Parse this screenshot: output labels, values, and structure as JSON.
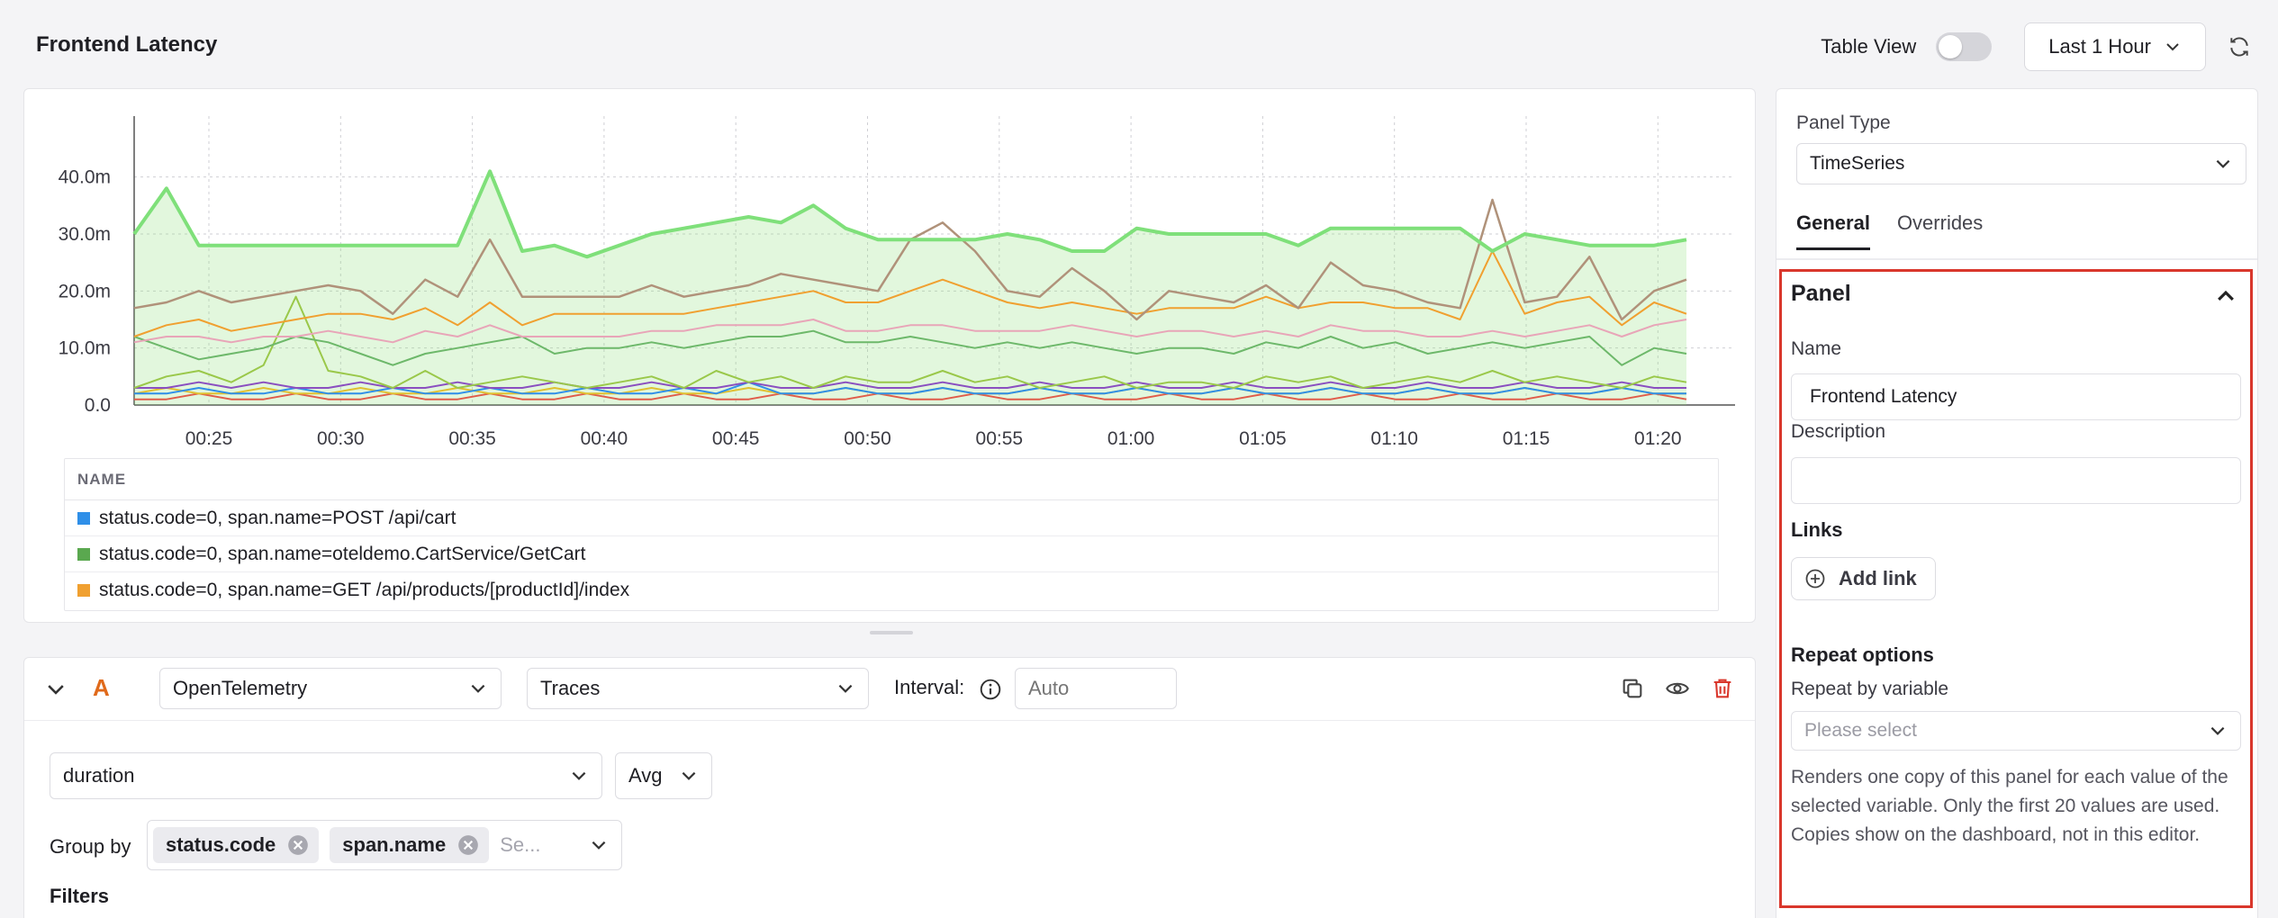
{
  "header": {
    "title": "Frontend Latency",
    "table_view_label": "Table View",
    "table_view_on": false,
    "time_range": "Last 1 Hour",
    "icons": {
      "time_range": "chevron-down-icon",
      "refresh": "refresh-icon"
    }
  },
  "chart_data": {
    "type": "area",
    "title": "",
    "xlabel": "",
    "ylabel": "",
    "x_ticks": [
      "00:25",
      "00:30",
      "00:35",
      "00:40",
      "00:45",
      "00:50",
      "00:55",
      "01:00",
      "01:05",
      "01:10",
      "01:15",
      "01:20"
    ],
    "y_ticks": [
      "0.0",
      "10.0m",
      "20.0m",
      "30.0m",
      "40.0m"
    ],
    "ylim": [
      0,
      0.045
    ],
    "grid": true,
    "series": [
      {
        "color": "#7fe07a",
        "fill": true,
        "width": 4,
        "values": [
          0.03,
          0.038,
          0.028,
          0.028,
          0.028,
          0.028,
          0.028,
          0.028,
          0.028,
          0.028,
          0.028,
          0.041,
          0.027,
          0.028,
          0.026,
          0.028,
          0.03,
          0.031,
          0.032,
          0.033,
          0.032,
          0.035,
          0.031,
          0.029,
          0.029,
          0.029,
          0.029,
          0.03,
          0.029,
          0.027,
          0.027,
          0.031,
          0.03,
          0.03,
          0.03,
          0.03,
          0.028,
          0.031,
          0.031,
          0.031,
          0.031,
          0.031,
          0.027,
          0.03,
          0.029,
          0.028,
          0.028,
          0.028,
          0.029
        ]
      },
      {
        "color": "#b0927a",
        "fill": false,
        "width": 2.5,
        "values": [
          0.017,
          0.018,
          0.02,
          0.018,
          0.019,
          0.02,
          0.021,
          0.02,
          0.016,
          0.022,
          0.019,
          0.029,
          0.019,
          0.019,
          0.019,
          0.019,
          0.021,
          0.019,
          0.02,
          0.021,
          0.023,
          0.022,
          0.021,
          0.02,
          0.029,
          0.032,
          0.027,
          0.02,
          0.019,
          0.024,
          0.02,
          0.015,
          0.02,
          0.019,
          0.018,
          0.021,
          0.017,
          0.025,
          0.021,
          0.02,
          0.018,
          0.017,
          0.036,
          0.018,
          0.019,
          0.026,
          0.015,
          0.02,
          0.022
        ]
      },
      {
        "color": "#f0a030",
        "fill": false,
        "width": 2,
        "values": [
          0.012,
          0.014,
          0.015,
          0.013,
          0.014,
          0.015,
          0.016,
          0.016,
          0.015,
          0.017,
          0.014,
          0.018,
          0.014,
          0.016,
          0.016,
          0.016,
          0.016,
          0.016,
          0.017,
          0.018,
          0.019,
          0.02,
          0.018,
          0.018,
          0.02,
          0.022,
          0.02,
          0.018,
          0.017,
          0.018,
          0.017,
          0.016,
          0.017,
          0.017,
          0.017,
          0.019,
          0.017,
          0.018,
          0.018,
          0.017,
          0.017,
          0.015,
          0.027,
          0.016,
          0.018,
          0.019,
          0.014,
          0.018,
          0.016
        ]
      },
      {
        "color": "#e8a5b8",
        "fill": false,
        "width": 2,
        "values": [
          0.011,
          0.012,
          0.012,
          0.011,
          0.012,
          0.012,
          0.013,
          0.012,
          0.011,
          0.013,
          0.012,
          0.014,
          0.012,
          0.012,
          0.012,
          0.012,
          0.013,
          0.013,
          0.014,
          0.014,
          0.014,
          0.015,
          0.013,
          0.013,
          0.014,
          0.014,
          0.013,
          0.013,
          0.013,
          0.014,
          0.013,
          0.012,
          0.013,
          0.013,
          0.012,
          0.013,
          0.012,
          0.014,
          0.013,
          0.013,
          0.012,
          0.012,
          0.013,
          0.012,
          0.013,
          0.014,
          0.012,
          0.014,
          0.015
        ]
      },
      {
        "color": "#6db86a",
        "fill": false,
        "width": 2,
        "values": [
          0.012,
          0.01,
          0.008,
          0.009,
          0.01,
          0.012,
          0.011,
          0.009,
          0.007,
          0.009,
          0.01,
          0.011,
          0.012,
          0.009,
          0.01,
          0.01,
          0.011,
          0.01,
          0.011,
          0.012,
          0.012,
          0.013,
          0.011,
          0.011,
          0.012,
          0.011,
          0.01,
          0.011,
          0.01,
          0.011,
          0.01,
          0.009,
          0.01,
          0.01,
          0.009,
          0.011,
          0.01,
          0.012,
          0.01,
          0.011,
          0.009,
          0.01,
          0.011,
          0.01,
          0.011,
          0.012,
          0.007,
          0.01,
          0.009
        ]
      },
      {
        "color": "#9ac84a",
        "fill": false,
        "width": 2,
        "values": [
          0.003,
          0.005,
          0.006,
          0.004,
          0.007,
          0.019,
          0.006,
          0.005,
          0.003,
          0.006,
          0.003,
          0.004,
          0.005,
          0.004,
          0.003,
          0.004,
          0.005,
          0.003,
          0.006,
          0.004,
          0.005,
          0.003,
          0.005,
          0.004,
          0.004,
          0.006,
          0.004,
          0.005,
          0.003,
          0.004,
          0.005,
          0.003,
          0.004,
          0.004,
          0.003,
          0.005,
          0.004,
          0.005,
          0.003,
          0.004,
          0.005,
          0.004,
          0.006,
          0.004,
          0.005,
          0.004,
          0.003,
          0.005,
          0.004
        ]
      },
      {
        "color": "#8a4fc0",
        "fill": false,
        "width": 2,
        "values": [
          0.003,
          0.003,
          0.004,
          0.003,
          0.004,
          0.003,
          0.003,
          0.004,
          0.003,
          0.003,
          0.004,
          0.003,
          0.003,
          0.004,
          0.003,
          0.003,
          0.004,
          0.003,
          0.003,
          0.004,
          0.003,
          0.003,
          0.004,
          0.003,
          0.003,
          0.004,
          0.003,
          0.003,
          0.004,
          0.003,
          0.003,
          0.004,
          0.003,
          0.003,
          0.004,
          0.003,
          0.003,
          0.004,
          0.003,
          0.003,
          0.004,
          0.003,
          0.003,
          0.004,
          0.003,
          0.003,
          0.004,
          0.003,
          0.003
        ]
      },
      {
        "color": "#2f8fe8",
        "fill": false,
        "width": 2,
        "values": [
          0.002,
          0.002,
          0.003,
          0.002,
          0.002,
          0.003,
          0.002,
          0.002,
          0.003,
          0.002,
          0.002,
          0.003,
          0.002,
          0.002,
          0.003,
          0.002,
          0.002,
          0.003,
          0.002,
          0.004,
          0.002,
          0.002,
          0.003,
          0.002,
          0.002,
          0.003,
          0.002,
          0.002,
          0.003,
          0.002,
          0.002,
          0.003,
          0.002,
          0.002,
          0.003,
          0.002,
          0.002,
          0.003,
          0.002,
          0.002,
          0.003,
          0.002,
          0.002,
          0.003,
          0.002,
          0.002,
          0.003,
          0.002,
          0.002
        ]
      },
      {
        "color": "#e0c030",
        "fill": false,
        "width": 2,
        "values": [
          0.002,
          0.003,
          0.002,
          0.002,
          0.003,
          0.002,
          0.002,
          0.003,
          0.002,
          0.002,
          0.003,
          0.002,
          0.002,
          0.003,
          0.002,
          0.002,
          0.003,
          0.002,
          0.002,
          0.003,
          0.002,
          0.002,
          0.003,
          0.002,
          0.002,
          0.003,
          0.002,
          0.002,
          0.003,
          0.002,
          0.002,
          0.003,
          0.002,
          0.002,
          0.003,
          0.002,
          0.002,
          0.003,
          0.002,
          0.002,
          0.003,
          0.002,
          0.002,
          0.003,
          0.002,
          0.002,
          0.003,
          0.002,
          0.002
        ]
      },
      {
        "color": "#e05c4a",
        "fill": false,
        "width": 2,
        "values": [
          0.001,
          0.001,
          0.002,
          0.001,
          0.001,
          0.002,
          0.001,
          0.001,
          0.002,
          0.001,
          0.001,
          0.002,
          0.001,
          0.001,
          0.002,
          0.001,
          0.001,
          0.002,
          0.001,
          0.001,
          0.002,
          0.001,
          0.001,
          0.002,
          0.001,
          0.001,
          0.002,
          0.001,
          0.001,
          0.002,
          0.001,
          0.001,
          0.002,
          0.001,
          0.001,
          0.002,
          0.001,
          0.001,
          0.002,
          0.001,
          0.001,
          0.002,
          0.001,
          0.001,
          0.002,
          0.001,
          0.001,
          0.002,
          0.001
        ]
      }
    ]
  },
  "legend": {
    "header": "NAME",
    "items": [
      {
        "label": "status.code=0, span.name=POST /api/cart",
        "color": "#2f8fe8"
      },
      {
        "label": "status.code=0, span.name=oteldemo.CartService/GetCart",
        "color": "#5aa84f"
      },
      {
        "label": "status.code=0, span.name=GET /api/products/[productId]/index",
        "color": "#f0a030"
      }
    ]
  },
  "query": {
    "letter": "A",
    "datasource": "OpenTelemetry",
    "signal": "Traces",
    "interval_label": "Interval:",
    "interval_placeholder": "Auto",
    "field": "duration",
    "aggregation": "Avg",
    "group_by_label": "Group by",
    "group_by_tags": [
      "status.code",
      "span.name"
    ],
    "group_by_placeholder": "Se...",
    "filters_label": "Filters",
    "icons": {
      "collapse": "chevron-down-icon",
      "info": "info-icon",
      "copy": "copy-icon",
      "visibility": "eye-icon",
      "delete": "trash-icon"
    }
  },
  "side": {
    "panel_type_label": "Panel Type",
    "panel_type_value": "TimeSeries",
    "tabs": [
      "General",
      "Overrides"
    ],
    "active_tab": "General",
    "section_title": "Panel",
    "name_label": "Name",
    "name_value": "Frontend Latency",
    "description_label": "Description",
    "description_value": "",
    "links_title": "Links",
    "add_link_label": "Add link",
    "repeat_title": "Repeat options",
    "repeat_label": "Repeat by variable",
    "repeat_placeholder": "Please select",
    "repeat_help": "Renders one copy of this panel for each value of the selected variable. Only the first 20 values are used. Copies show on the dashboard, not in this editor.",
    "highlight_color": "#d9372c"
  }
}
